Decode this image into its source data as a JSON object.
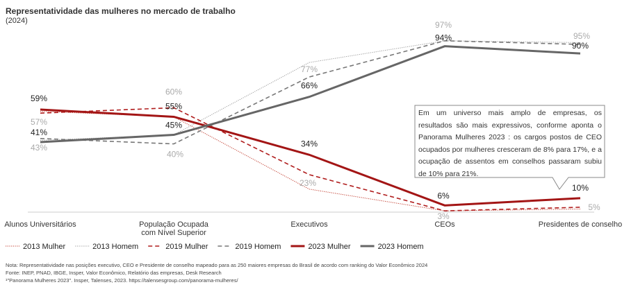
{
  "title": "Representatividade das mulheres no mercado de trabalho",
  "subtitle": "(2024)",
  "chart_data": {
    "type": "line",
    "categories": [
      "Alunos Universitários",
      "População Ocupada|com Nível Superior",
      "Executivos",
      "CEOs",
      "Presidentes de conselho"
    ],
    "ylim": [
      0,
      100
    ],
    "grid": false,
    "legend": "bottom",
    "series": [
      {
        "name": "2013 Mulher",
        "values": [
          58,
          55,
          15,
          3,
          4
        ],
        "color": "#c0392b",
        "style": "dotted",
        "labels": [
          null,
          null,
          null,
          null,
          null
        ]
      },
      {
        "name": "2013 Homem",
        "values": [
          42,
          45,
          85,
          97,
          96
        ],
        "color": "#999999",
        "style": "dotted",
        "labels": [
          null,
          null,
          null,
          null,
          null
        ]
      },
      {
        "name": "2019 Mulher",
        "values": [
          57,
          60,
          23,
          3,
          5
        ],
        "color": "#b01c1c",
        "style": "dashed",
        "labels": [
          "57%",
          "60%",
          "23%",
          "3%",
          "5%"
        ]
      },
      {
        "name": "2019 Homem",
        "values": [
          43,
          40,
          77,
          97,
          95
        ],
        "color": "#777777",
        "style": "dashed",
        "labels": [
          "43%",
          "40%",
          "77%",
          "97%",
          "95%"
        ]
      },
      {
        "name": "2023 Mulher",
        "values": [
          59,
          55,
          34,
          6,
          10
        ],
        "color": "#a31515",
        "style": "solid",
        "labels": [
          "59%",
          "55%",
          "34%",
          "6%",
          "10%"
        ]
      },
      {
        "name": "2023 Homem",
        "values": [
          41,
          45,
          66,
          94,
          90
        ],
        "color": "#666666",
        "style": "solid",
        "labels": [
          "41%",
          "45%",
          "66%",
          "94%",
          "90%"
        ]
      }
    ]
  },
  "callout": "Em um universo mais amplo de empresas, os resultados são mais expressivos, conforme aponta o Panorama Mulheres 2023 : os cargos postos de CEO ocupados por mulheres cresceram de 8% para 17%, e a ocupação de assentos em conselhos passaram subiu de 10% para 21%.",
  "notes": [
    "Nota: Representatividade nas posições executivo, CEO e Presidente de conselho mapeado para as 250 maiores empresas do Brasil de acordo com ranking do Valor Econômico 2024",
    "Fonte: INEP, PNAD, IBGE, Insper, Valor Econômico, Relatório das empresas, Desk Research",
    "¹\"Panorama Mulheres 2023\". Insper, Talenses, 2023. https://talensesgroup.com/panorama-mulheres/"
  ]
}
